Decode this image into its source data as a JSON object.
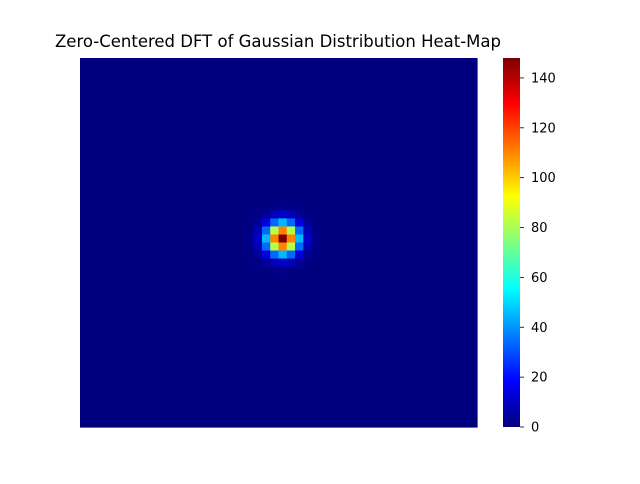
{
  "chart_data": {
    "type": "heatmap",
    "title": "Zero-Centered DFT of Gaussian Distribution Heat-Map",
    "xlabel": "",
    "ylabel": "",
    "grid": false,
    "axes_visible": false,
    "colormap": "jet",
    "colormap_stops": [
      "#00007f",
      "#0000ff",
      "#007fff",
      "#00ffff",
      "#7fff7f",
      "#ffff00",
      "#ff7f00",
      "#ff0000",
      "#7f0000"
    ],
    "grid_size": {
      "rows": 46,
      "cols": 48
    },
    "peak": {
      "row": 22,
      "col": 24,
      "value": 148
    },
    "gaussian_sigma_cells": 1.3,
    "colorbar": {
      "range": [
        0,
        148
      ],
      "ticks": [
        0,
        20,
        40,
        60,
        80,
        100,
        120,
        140
      ],
      "tick_labels": [
        "0",
        "20",
        "40",
        "60",
        "80",
        "100",
        "120",
        "140"
      ]
    }
  }
}
